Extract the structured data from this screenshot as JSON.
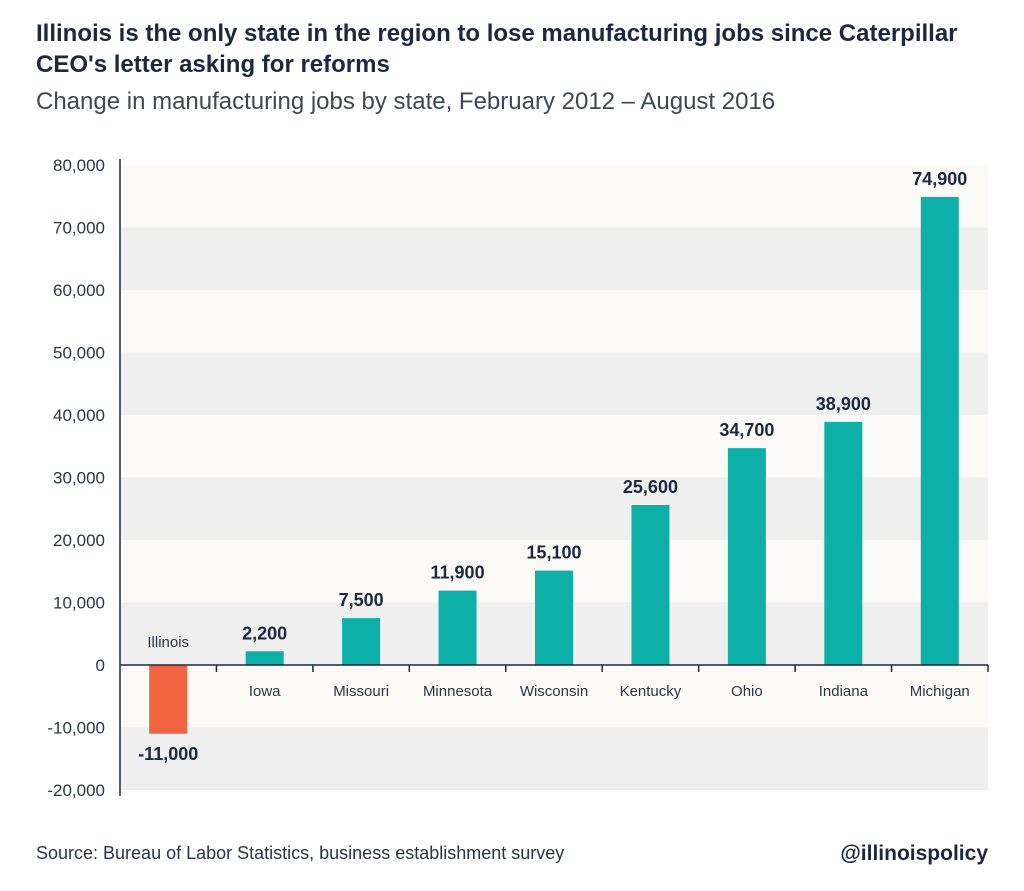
{
  "header": {
    "title": "Illinois is the only state in the region to lose manufacturing jobs since Caterpillar CEO's letter asking for reforms",
    "subtitle": "Change in manufacturing jobs by state, February 2012 – August 2016"
  },
  "footer": {
    "source": "Source: Bureau of Labor Statistics, business establishment survey",
    "handle": "@illinoispolicy"
  },
  "colors": {
    "positive_bar": "#0cb0a9",
    "negative_bar": "#f26440",
    "band_dark": "#efefef",
    "band_light": "#fbfaf7",
    "axis": "#1c2840",
    "value_label": "#1c2840",
    "category_label": "#2b3446"
  },
  "chart_data": {
    "type": "bar",
    "title": "Change in manufacturing jobs by state, February 2012 – August 2016",
    "xlabel": "",
    "ylabel": "",
    "ylim": [
      -20000,
      80000
    ],
    "yticks": [
      -20000,
      -10000,
      0,
      10000,
      20000,
      30000,
      40000,
      50000,
      60000,
      70000,
      80000
    ],
    "ytick_labels": [
      "-20,000",
      "-10,000",
      "0",
      "10,000",
      "20,000",
      "30,000",
      "40,000",
      "50,000",
      "60,000",
      "70,000",
      "80,000"
    ],
    "grid": "alternating horizontal bands",
    "legend": "none",
    "categories": [
      "Illinois",
      "Iowa",
      "Missouri",
      "Minnesota",
      "Wisconsin",
      "Kentucky",
      "Ohio",
      "Indiana",
      "Michigan"
    ],
    "values": [
      -11000,
      2200,
      7500,
      11900,
      15100,
      25600,
      34700,
      38900,
      74900
    ],
    "value_labels": [
      "-11,000",
      "2,200",
      "7,500",
      "11,900",
      "15,100",
      "25,600",
      "34,700",
      "38,900",
      "74,900"
    ]
  }
}
